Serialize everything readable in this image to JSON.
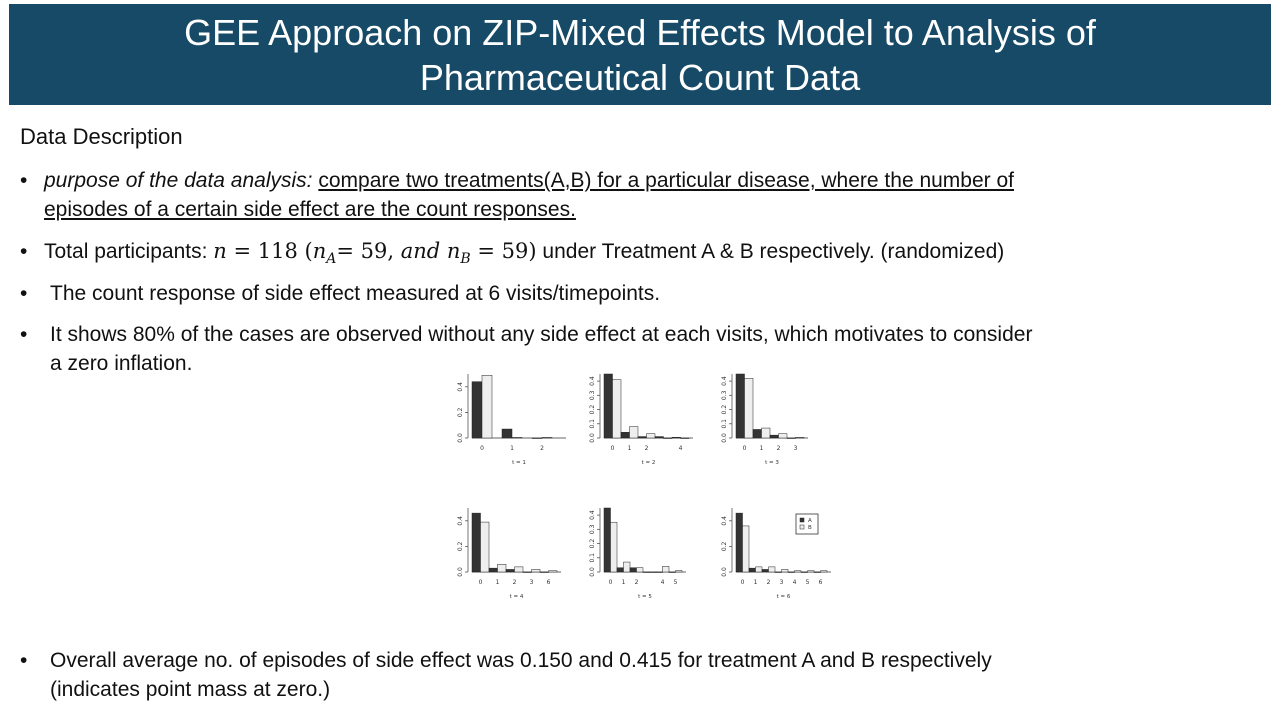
{
  "slide": {
    "title_line1": "GEE Approach on ZIP-Mixed Effects Model to Analysis of",
    "title_line2": "Pharmaceutical Count Data",
    "section_label": "Data Description"
  },
  "bullets": {
    "b1_label": "purpose of the data analysis:",
    "b1_text_line1": "compare two treatments(A,B) for a particular disease, where the number of",
    "b1_text_line2": "episodes of a certain side effect are the count responses.",
    "b2_prefix": "Total participants:",
    "b2_math_n": "n",
    "b2_math_eq": " = 118 (",
    "b2_math_nA": "n",
    "b2_math_A": "A",
    "b2_math_eqA": "= 59, ",
    "b2_math_and": "and ",
    "b2_math_nB": "n",
    "b2_math_B": "B",
    "b2_math_eqB": " = 59)",
    "b2_suffix": "under Treatment A & B respectively. (randomized)",
    "b3_text": "The count response of side effect measured at 6 visits/timepoints.",
    "b4_line1": "It shows 80% of the cases are observed without any side effect at each visits, which motivates to consider",
    "b4_line2": "a zero inflation.",
    "b5_line1": "Overall average no. of episodes of side effect was 0.150 and 0.415 for treatment A and B respectively",
    "b5_line2": "(indicates point mass at zero.)",
    "bullet_symbol": "•"
  },
  "colors": {
    "title_bg": "#174a66",
    "title_text": "#ffffff",
    "bar_A": "#333333",
    "bar_B": "#eeeeee"
  },
  "chart_data": [
    {
      "type": "bar",
      "title": "t = 1",
      "categories": [
        "0",
        "1",
        "2"
      ],
      "x_tick_labels": [
        "0",
        "1",
        "2"
      ],
      "y_ticks": [
        "0.0",
        "0.2",
        "0.4"
      ],
      "ylim": [
        0,
        0.5
      ],
      "series": [
        {
          "name": "A",
          "values": [
            0.44,
            0.07,
            0.0
          ]
        },
        {
          "name": "B",
          "values": [
            0.49,
            0.005,
            0.005
          ]
        }
      ]
    },
    {
      "type": "bar",
      "title": "t = 2",
      "categories": [
        "0",
        "1",
        "2",
        "3",
        "4"
      ],
      "x_tick_labels": [
        "0",
        "1",
        "2",
        "",
        "4"
      ],
      "y_ticks": [
        "0.0",
        "0.1",
        "0.2",
        "0.3",
        "0.4"
      ],
      "ylim": [
        0,
        0.45
      ],
      "series": [
        {
          "name": "A",
          "values": [
            0.45,
            0.04,
            0.01,
            0.01,
            0.005
          ]
        },
        {
          "name": "B",
          "values": [
            0.41,
            0.08,
            0.03,
            0.0,
            0.0
          ]
        }
      ]
    },
    {
      "type": "bar",
      "title": "t = 3",
      "categories": [
        "0",
        "1",
        "2",
        "3"
      ],
      "x_tick_labels": [
        "0",
        "1",
        "2",
        "3"
      ],
      "y_ticks": [
        "0.0",
        "0.1",
        "0.2",
        "0.3",
        "0.4"
      ],
      "ylim": [
        0,
        0.45
      ],
      "series": [
        {
          "name": "A",
          "values": [
            0.45,
            0.06,
            0.02,
            0.0
          ]
        },
        {
          "name": "B",
          "values": [
            0.42,
            0.07,
            0.03,
            0.005
          ]
        }
      ]
    },
    {
      "type": "bar",
      "title": "t = 4",
      "categories": [
        "0",
        "1",
        "2",
        "3",
        "6"
      ],
      "x_tick_labels": [
        "0",
        "1",
        "2",
        "3",
        "6"
      ],
      "y_ticks": [
        "0.0",
        "0.2",
        "0.4"
      ],
      "ylim": [
        0,
        0.5
      ],
      "series": [
        {
          "name": "A",
          "values": [
            0.46,
            0.03,
            0.02,
            0.0,
            0.0
          ]
        },
        {
          "name": "B",
          "values": [
            0.39,
            0.06,
            0.04,
            0.02,
            0.01
          ]
        }
      ]
    },
    {
      "type": "bar",
      "title": "t = 5",
      "categories": [
        "0",
        "1",
        "2",
        "3",
        "4",
        "5"
      ],
      "x_tick_labels": [
        "0",
        "1",
        "2",
        "",
        "4",
        "5"
      ],
      "y_ticks": [
        "0.0",
        "0.1",
        "0.2",
        "0.3",
        "0.4"
      ],
      "ylim": [
        0,
        0.45
      ],
      "series": [
        {
          "name": "A",
          "values": [
            0.45,
            0.03,
            0.03,
            0.0,
            0.0,
            0.0
          ]
        },
        {
          "name": "B",
          "values": [
            0.35,
            0.07,
            0.03,
            0.0,
            0.04,
            0.01
          ]
        }
      ]
    },
    {
      "type": "bar",
      "title": "t = 6",
      "categories": [
        "0",
        "1",
        "2",
        "3",
        "4",
        "5",
        "6"
      ],
      "x_tick_labels": [
        "0",
        "1",
        "2",
        "3",
        "4",
        "5",
        "6"
      ],
      "y_ticks": [
        "0.0",
        "0.2",
        "0.4"
      ],
      "ylim": [
        0,
        0.5
      ],
      "series": [
        {
          "name": "A",
          "values": [
            0.46,
            0.03,
            0.02,
            0.0,
            0.0,
            0.0,
            0.0
          ]
        },
        {
          "name": "B",
          "values": [
            0.36,
            0.04,
            0.04,
            0.02,
            0.01,
            0.01,
            0.01
          ]
        }
      ]
    }
  ],
  "legend": {
    "A": "A",
    "B": "B",
    "placement": "top-right of t = 6 panel"
  }
}
